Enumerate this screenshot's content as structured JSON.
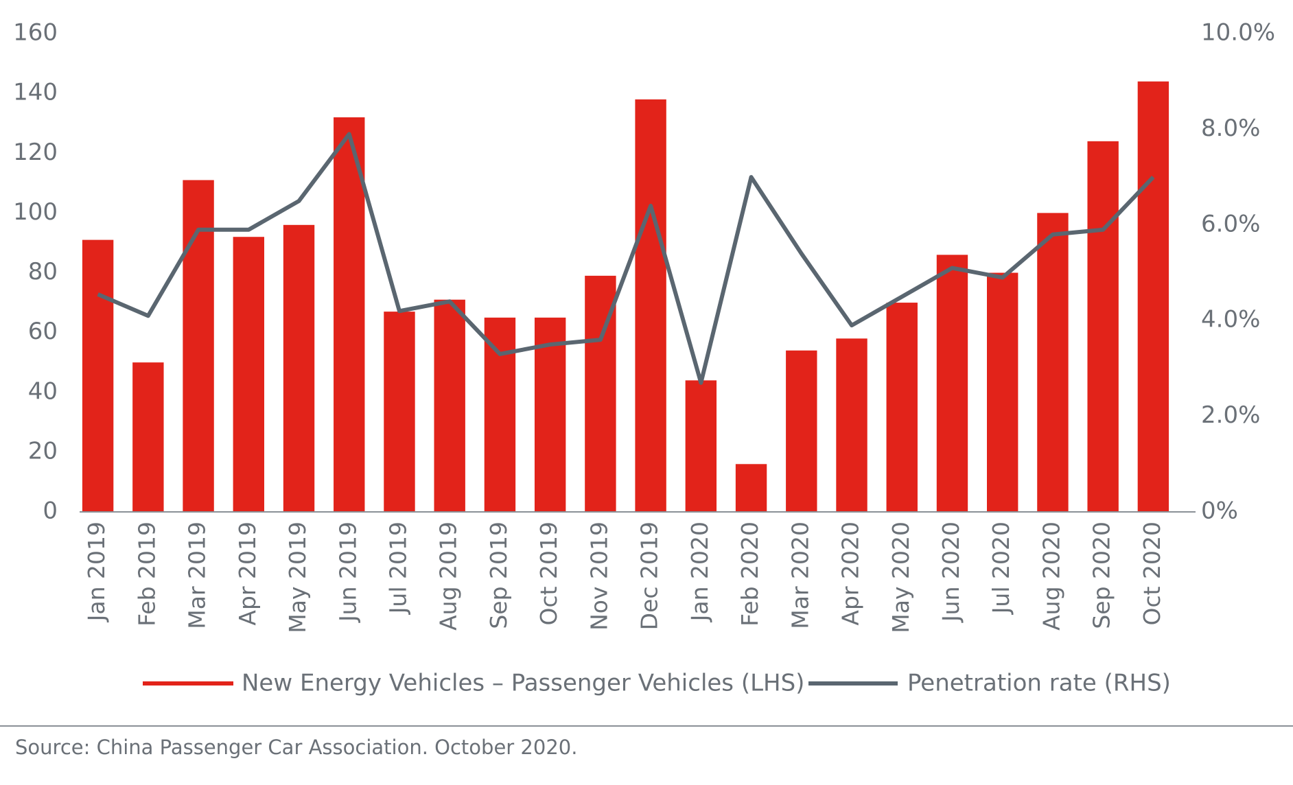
{
  "chart_data": {
    "type": "bar_line",
    "categories": [
      "Jan 2019",
      "Feb 2019",
      "Mar 2019",
      "Apr 2019",
      "May 2019",
      "Jun 2019",
      "Jul 2019",
      "Aug 2019",
      "Sep 2019",
      "Oct 2019",
      "Nov 2019",
      "Dec 2019",
      "Jan 2020",
      "Feb 2020",
      "Mar 2020",
      "Apr 2020",
      "May 2020",
      "Jun 2020",
      "Jul 2020",
      "Aug 2020",
      "Sep 2020",
      "Oct 2020"
    ],
    "series": [
      {
        "name": "New Energy Vehicles – Passenger Vehicles (LHS)",
        "type": "bar",
        "color": "#e2231a",
        "values": [
          91,
          50,
          111,
          92,
          96,
          132,
          67,
          71,
          65,
          65,
          79,
          138,
          44,
          16,
          54,
          58,
          70,
          86,
          80,
          100,
          124,
          144
        ]
      },
      {
        "name": "Penetration rate (RHS)",
        "type": "line",
        "axis": "y2",
        "color": "#5a6670",
        "values": [
          4.55,
          4.1,
          5.9,
          5.9,
          6.5,
          7.9,
          4.2,
          4.4,
          3.3,
          3.5,
          3.6,
          6.4,
          2.7,
          7.0,
          5.4,
          3.9,
          4.5,
          5.1,
          4.9,
          5.8,
          5.9,
          7.0
        ]
      }
    ],
    "ylim": [
      0,
      160
    ],
    "yticks": [
      0,
      20,
      40,
      60,
      80,
      100,
      120,
      140,
      160
    ],
    "y2lim": [
      0,
      10
    ],
    "y2ticks": [
      {
        "value": 0,
        "label": "0%"
      },
      {
        "value": 2,
        "label": "2.0%"
      },
      {
        "value": 4,
        "label": "4.0%"
      },
      {
        "value": 6,
        "label": "6.0%"
      },
      {
        "value": 8,
        "label": "8.0%"
      },
      {
        "value": 10,
        "label": "10.0%"
      }
    ],
    "source": "Source: China Passenger Car Association. October 2020."
  }
}
